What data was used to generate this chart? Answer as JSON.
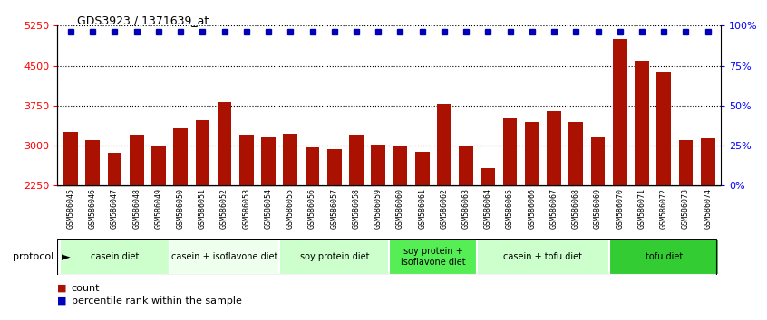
{
  "title": "GDS3923 / 1371639_at",
  "samples": [
    "GSM586045",
    "GSM586046",
    "GSM586047",
    "GSM586048",
    "GSM586049",
    "GSM586050",
    "GSM586051",
    "GSM586052",
    "GSM586053",
    "GSM586054",
    "GSM586055",
    "GSM586056",
    "GSM586057",
    "GSM586058",
    "GSM586059",
    "GSM586060",
    "GSM586061",
    "GSM586062",
    "GSM586063",
    "GSM586064",
    "GSM586065",
    "GSM586066",
    "GSM586067",
    "GSM586068",
    "GSM586069",
    "GSM586070",
    "GSM586071",
    "GSM586072",
    "GSM586073",
    "GSM586074"
  ],
  "counts": [
    3250,
    3100,
    2870,
    3210,
    3000,
    3320,
    3480,
    3820,
    3200,
    3150,
    3230,
    2970,
    2930,
    3200,
    3010,
    3000,
    2880,
    3780,
    3000,
    2580,
    3520,
    3450,
    3640,
    3450,
    3150,
    5000,
    4580,
    4380,
    3100,
    3130
  ],
  "protocols": [
    {
      "label": "casein diet",
      "start": 0,
      "end": 5,
      "color": "#ccffcc"
    },
    {
      "label": "casein + isoflavone diet",
      "start": 5,
      "end": 10,
      "color": "#eeffee"
    },
    {
      "label": "soy protein diet",
      "start": 10,
      "end": 15,
      "color": "#ccffcc"
    },
    {
      "label": "soy protein +\nisoflavone diet",
      "start": 15,
      "end": 19,
      "color": "#55ee55"
    },
    {
      "label": "casein + tofu diet",
      "start": 19,
      "end": 25,
      "color": "#ccffcc"
    },
    {
      "label": "tofu diet",
      "start": 25,
      "end": 30,
      "color": "#33cc33"
    }
  ],
  "bar_color": "#aa1100",
  "percentile_color": "#0000bb",
  "ylim_left": [
    2250,
    5250
  ],
  "yticks_left": [
    2250,
    3000,
    3750,
    4500,
    5250
  ],
  "ylim_right": [
    0,
    100
  ],
  "yticks_right": [
    0,
    25,
    50,
    75,
    100
  ],
  "bg_color": "#ffffff",
  "plot_bg": "#ffffff",
  "xticklabel_bg": "#dddddd"
}
